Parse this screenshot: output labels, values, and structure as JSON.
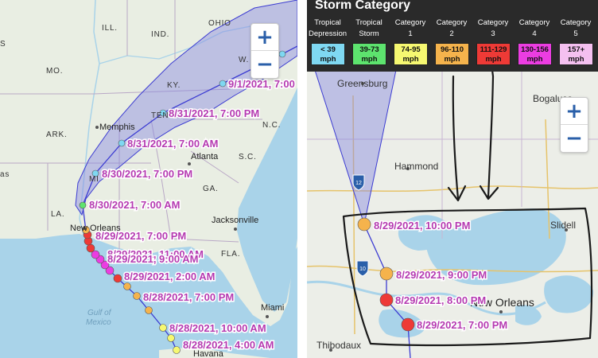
{
  "left_map": {
    "states": {
      "ill": "ILL.",
      "ind": "IND.",
      "ohio": "OHIO",
      "mo": "MO.",
      "ky": "KY.",
      "w": "W.",
      "tenn": "TENN.",
      "nc": "N.C.",
      "ark": "ARK.",
      "sc": "S.C.",
      "miss": "MI",
      "ga": "GA.",
      "la": "LA.",
      "fla": "FLA.",
      "texas": "as",
      "s_edge": "S"
    },
    "cities": {
      "memphis": "Memphis",
      "atlanta": "Atlanta",
      "jacksonville": "Jacksonville",
      "new_orleans": "New Orleans",
      "miami": "Miami",
      "havana": "Havana"
    },
    "water": {
      "gulf": "Gulf of",
      "mexico": "Mexico"
    },
    "track_labels": [
      "9/1/2021, 7:00",
      "8/31/2021, 7:00 PM",
      "8/31/2021, 7:00 AM",
      "8/30/2021, 7:00 PM",
      "8/30/2021, 7:00 AM",
      "8/29/2021, 7:00 PM",
      "8/29/2021, 11:00 AM",
      "8/29/2021, 9:00 AM",
      "8/29/2021, 2:00 AM",
      "8/28/2021, 7:00 PM",
      "8/28/2021, 10:00 AM",
      "8/28/2021, 4:00 AM"
    ],
    "zoom_in": "+",
    "zoom_out": "−"
  },
  "right_map": {
    "legend": {
      "title": "Storm Category",
      "categories": [
        {
          "line1": "Tropical",
          "line2": "Depression",
          "range1": "< 39",
          "range2": "mph",
          "color": "#7fd8f2"
        },
        {
          "line1": "Tropical",
          "line2": "Storm",
          "range1": "39-73",
          "range2": "mph",
          "color": "#5de36e"
        },
        {
          "line1": "Category",
          "line2": "1",
          "range1": "74-95",
          "range2": "mph",
          "color": "#f6f871"
        },
        {
          "line1": "Category",
          "line2": "2",
          "range1": "96-110",
          "range2": "mph",
          "color": "#f5b34c"
        },
        {
          "line1": "Category",
          "line2": "3",
          "range1": "111-129",
          "range2": "mph",
          "color": "#ee3a36"
        },
        {
          "line1": "Category",
          "line2": "4",
          "range1": "130-156",
          "range2": "mph",
          "color": "#ec3de2"
        },
        {
          "line1": "Category",
          "line2": "5",
          "range1": "157+",
          "range2": "mph",
          "color": "#f4c0f0"
        }
      ]
    },
    "cities": {
      "greensburg": "Greensburg",
      "bogalusa": "Bogalusa",
      "hammond": "Hammond",
      "slidell": "Slidell",
      "new_orleans": "New Orleans",
      "thibodaux": "Thibodaux"
    },
    "shields": {
      "i12": "12",
      "i10": "10"
    },
    "track_labels": [
      "8/29/2021, 10:00 PM",
      "8/29/2021, 9:00 PM",
      "8/29/2021, 8:00 PM",
      "8/29/2021, 7:00 PM"
    ],
    "zoom_in": "+",
    "zoom_out": "−"
  }
}
